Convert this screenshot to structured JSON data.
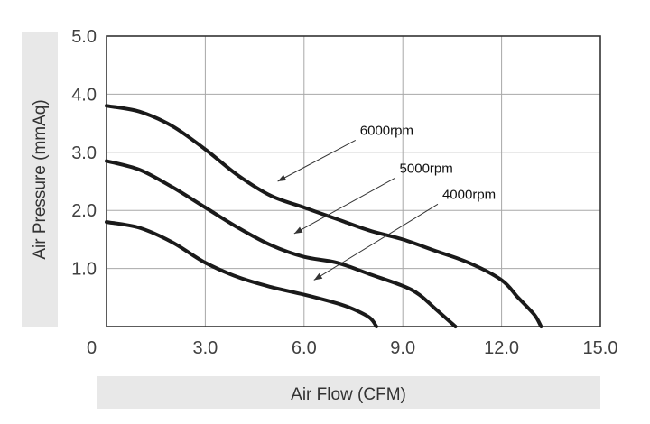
{
  "chart_data": {
    "type": "line",
    "title": "",
    "xlabel": "Air Flow (CFM)",
    "ylabel": "Air Pressure (mmAq)",
    "xlim": [
      0,
      15
    ],
    "ylim": [
      0,
      5
    ],
    "x_ticks": [
      "0",
      "3.0",
      "6.0",
      "9.0",
      "12.0",
      "15.0"
    ],
    "y_ticks": [
      "1.0",
      "2.0",
      "3.0",
      "4.0",
      "5.0"
    ],
    "grid": true,
    "legend": "none",
    "series": [
      {
        "name": "6000rpm",
        "points": [
          [
            0,
            3.8
          ],
          [
            1,
            3.7
          ],
          [
            2,
            3.45
          ],
          [
            3,
            3.05
          ],
          [
            4,
            2.6
          ],
          [
            5,
            2.25
          ],
          [
            6,
            2.05
          ],
          [
            7,
            1.85
          ],
          [
            8,
            1.65
          ],
          [
            9,
            1.5
          ],
          [
            10,
            1.3
          ],
          [
            11,
            1.1
          ],
          [
            12,
            0.8
          ],
          [
            12.5,
            0.5
          ],
          [
            13,
            0.2
          ],
          [
            13.2,
            0
          ]
        ]
      },
      {
        "name": "5000rpm",
        "points": [
          [
            0,
            2.85
          ],
          [
            1,
            2.7
          ],
          [
            2,
            2.4
          ],
          [
            3,
            2.05
          ],
          [
            4,
            1.7
          ],
          [
            5,
            1.4
          ],
          [
            6,
            1.2
          ],
          [
            7,
            1.1
          ],
          [
            8,
            0.9
          ],
          [
            9,
            0.7
          ],
          [
            9.5,
            0.55
          ],
          [
            10,
            0.3
          ],
          [
            10.4,
            0.1
          ],
          [
            10.6,
            0
          ]
        ]
      },
      {
        "name": "4000rpm",
        "points": [
          [
            0,
            1.8
          ],
          [
            1,
            1.7
          ],
          [
            2,
            1.45
          ],
          [
            3,
            1.1
          ],
          [
            4,
            0.85
          ],
          [
            5,
            0.68
          ],
          [
            6,
            0.55
          ],
          [
            7,
            0.4
          ],
          [
            7.5,
            0.3
          ],
          [
            8,
            0.15
          ],
          [
            8.2,
            0
          ]
        ]
      }
    ],
    "annotations": [
      {
        "text": "6000rpm",
        "text_x": 7.7,
        "text_y": 3.3,
        "arrow_to": [
          5.2,
          2.5
        ]
      },
      {
        "text": "5000rpm",
        "text_x": 8.9,
        "text_y": 2.65,
        "arrow_to": [
          5.7,
          1.6
        ]
      },
      {
        "text": "4000rpm",
        "text_x": 10.2,
        "text_y": 2.2,
        "arrow_to": [
          6.3,
          0.8
        ]
      }
    ]
  }
}
